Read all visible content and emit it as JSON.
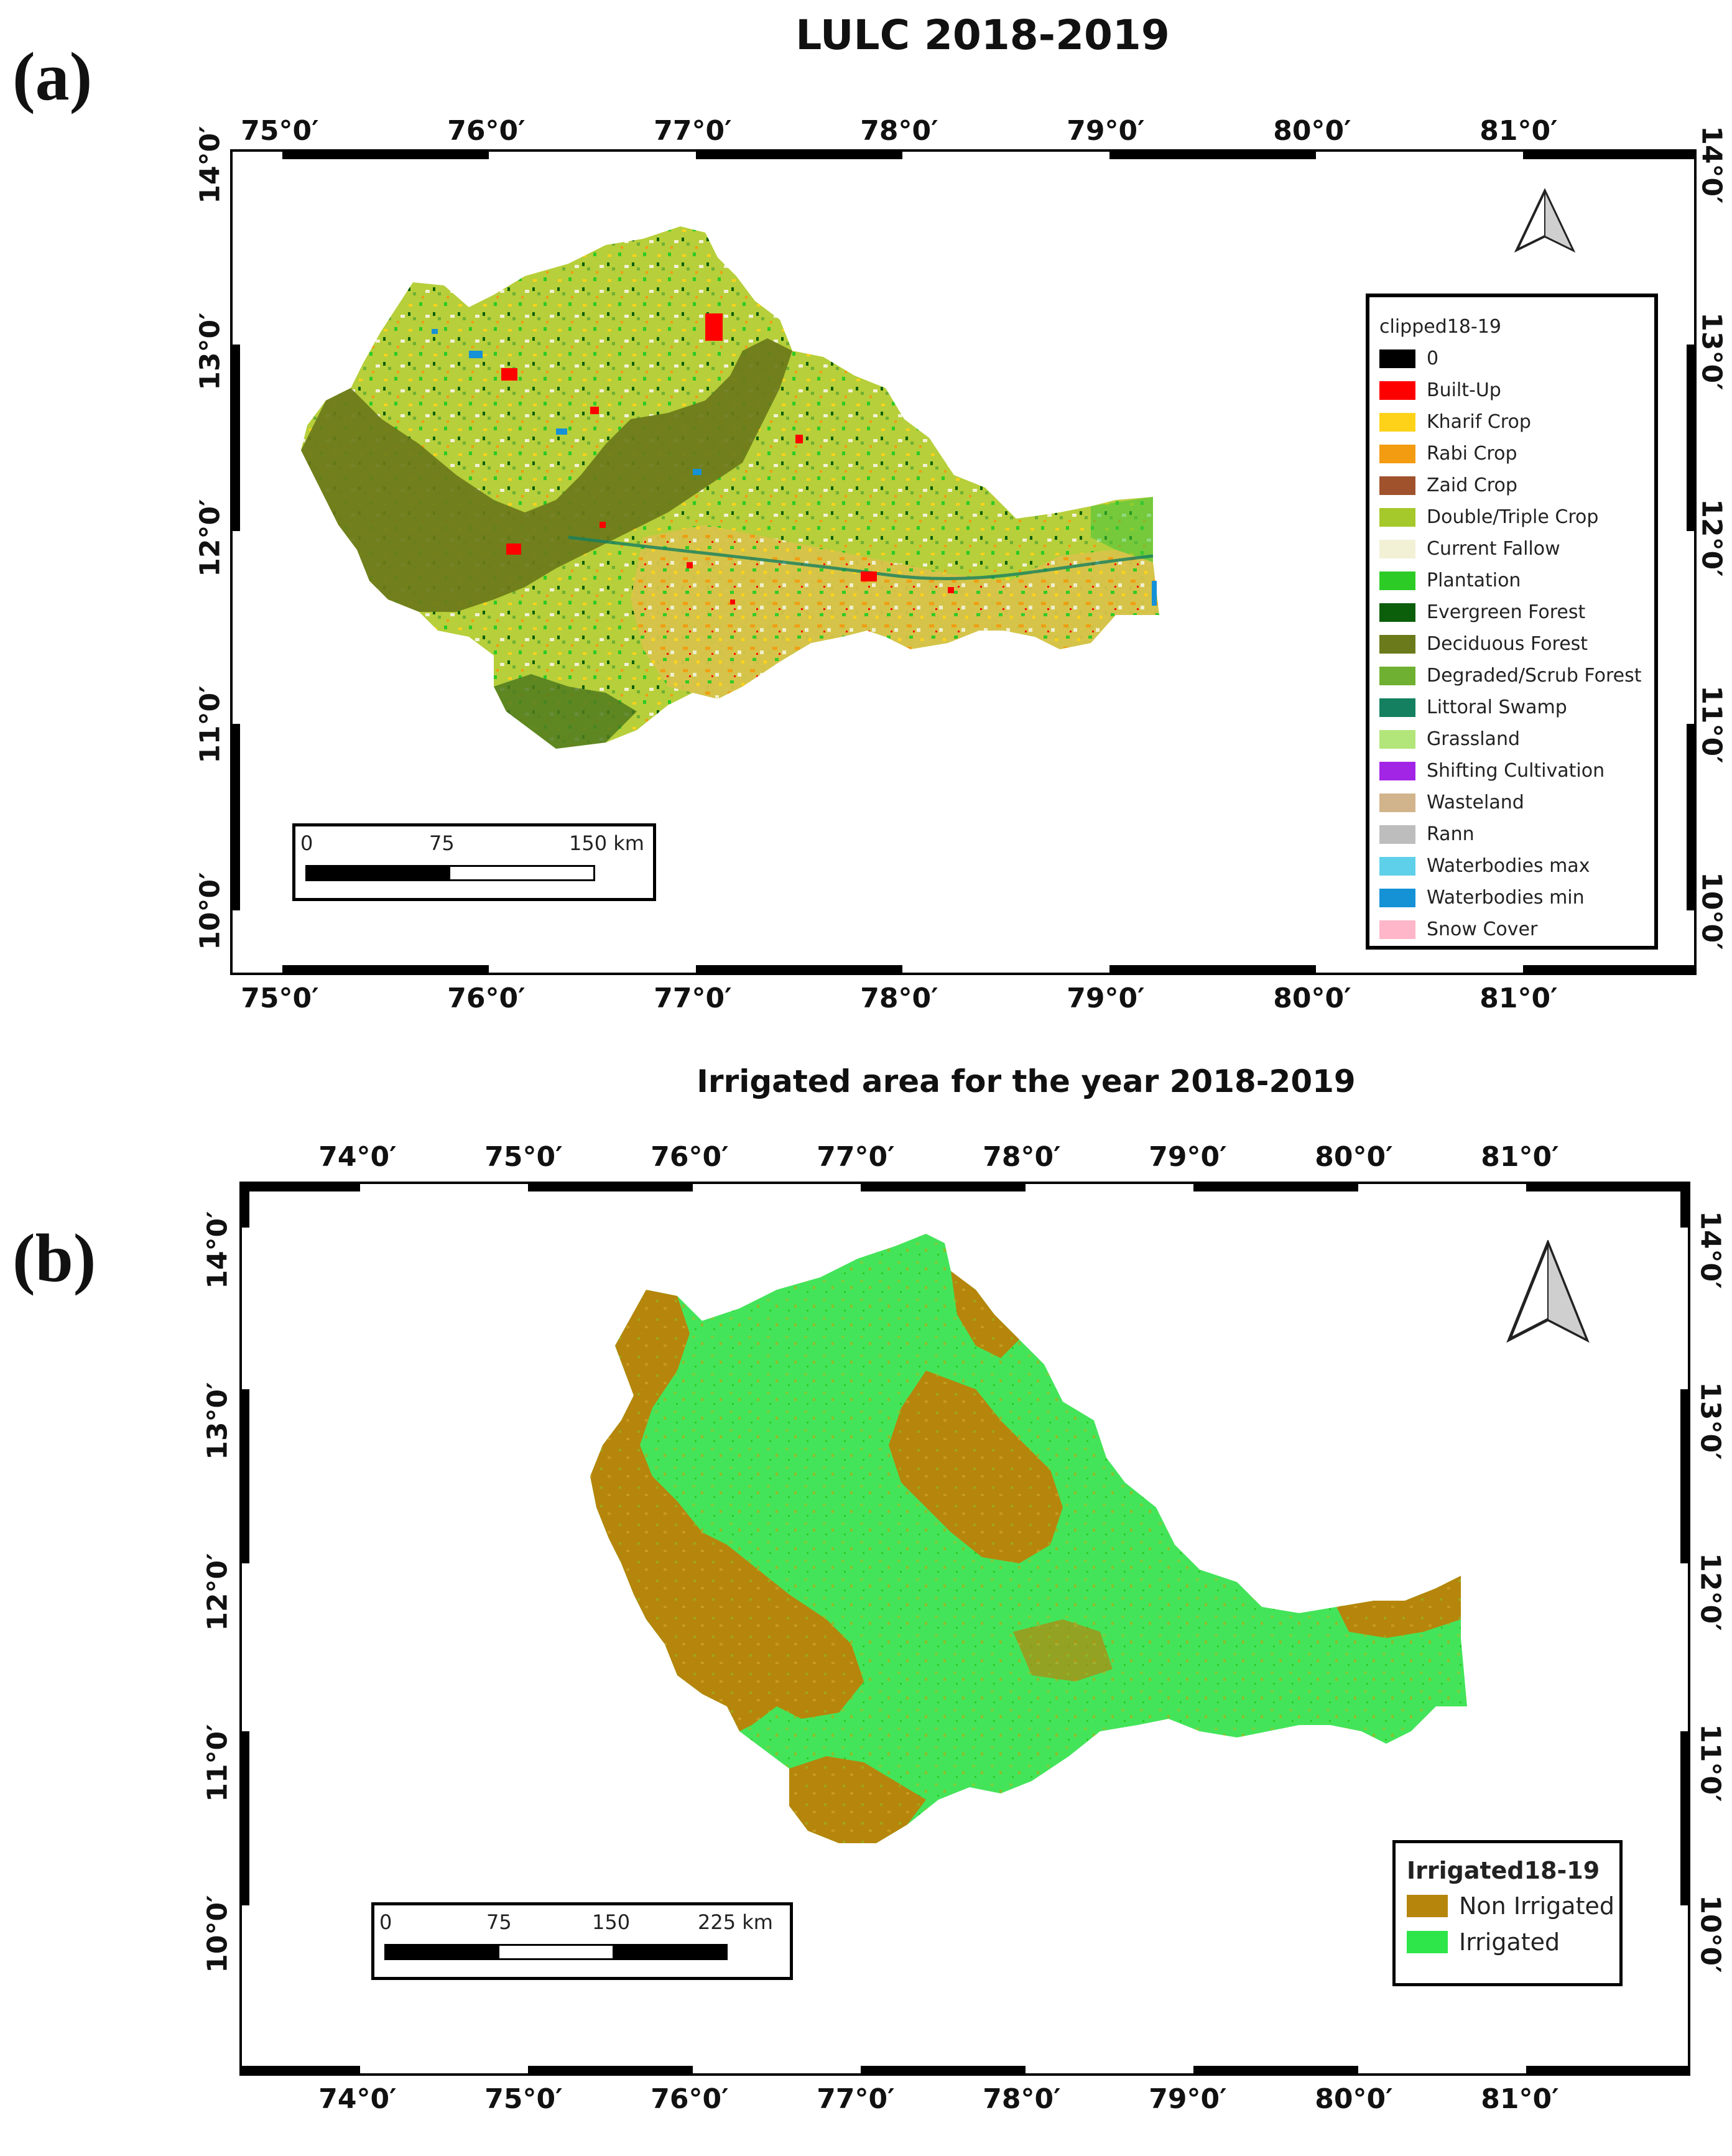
{
  "panel_a": {
    "letter": "(a)",
    "title": "LULC 2018-2019",
    "top_ticks": [
      "75°0′",
      "76°0′",
      "77°0′",
      "78°0′",
      "79°0′",
      "80°0′",
      "81°0′"
    ],
    "bottom_ticks": [
      "75°0′",
      "76°0′",
      "77°0′",
      "78°0′",
      "79°0′",
      "80°0′",
      "81°0′"
    ],
    "side_ticks": [
      "14°0′",
      "13°0′",
      "12°0′",
      "11°0′",
      "10°0′"
    ],
    "legend": {
      "title": "clipped18-19",
      "items": [
        {
          "label": "0",
          "color": "#000000"
        },
        {
          "label": "Built-Up",
          "color": "#ff0000"
        },
        {
          "label": "Kharif Crop",
          "color": "#ffd21a"
        },
        {
          "label": "Rabi Crop",
          "color": "#f39c12"
        },
        {
          "label": "Zaid Crop",
          "color": "#a0522d"
        },
        {
          "label": "Double/Triple Crop",
          "color": "#a5c82a"
        },
        {
          "label": "Current Fallow",
          "color": "#f2f1d6"
        },
        {
          "label": "Plantation",
          "color": "#2ccb26"
        },
        {
          "label": "Evergreen Forest",
          "color": "#0b5f0b"
        },
        {
          "label": " Deciduous Forest",
          "color": "#6b7a1a"
        },
        {
          "label": "Degraded/Scrub Forest",
          "color": "#6fb032"
        },
        {
          "label": "Littoral Swamp",
          "color": "#148060"
        },
        {
          "label": "Grassland",
          "color": "#b2e57a"
        },
        {
          "label": "Shifting Cultivation",
          "color": "#a225e6"
        },
        {
          "label": "Wasteland",
          "color": "#d2b48c"
        },
        {
          "label": "Rann",
          "color": "#bdbdbd"
        },
        {
          "label": "Waterbodies max",
          "color": "#5fd0ea"
        },
        {
          "label": "Waterbodies min",
          "color": "#1591d6"
        },
        {
          "label": "Snow Cover",
          "color": "#ffb6c8"
        }
      ]
    },
    "scale": {
      "labels": [
        "0",
        "75",
        "150 km"
      ]
    }
  },
  "panel_b": {
    "letter": "(b)",
    "title": "Irrigated area for the year 2018-2019",
    "top_ticks": [
      "74°0′",
      "75°0′",
      "76°0′",
      "77°0′",
      "78°0′",
      "79°0′",
      "80°0′",
      "81°0′"
    ],
    "bottom_ticks": [
      "74°0′",
      "75°0′",
      "76°0′",
      "77°0′",
      "78°0′",
      "79°0′",
      "80°0′",
      "81°0′"
    ],
    "side_ticks": [
      "14°0′",
      "13°0′",
      "12°0′",
      "11°0′",
      "10°0′"
    ],
    "legend": {
      "title": "Irrigated18-19",
      "items": [
        {
          "label": "Non Irrigated",
          "color": "#b5860b"
        },
        {
          "label": "Irrigated",
          "color": "#2ee54a"
        }
      ]
    },
    "scale": {
      "labels": [
        "0",
        "75",
        "150",
        "225 km"
      ]
    }
  },
  "colors": {
    "region_a_base": "#b6cf3a",
    "region_b_base": "#44e45a"
  }
}
